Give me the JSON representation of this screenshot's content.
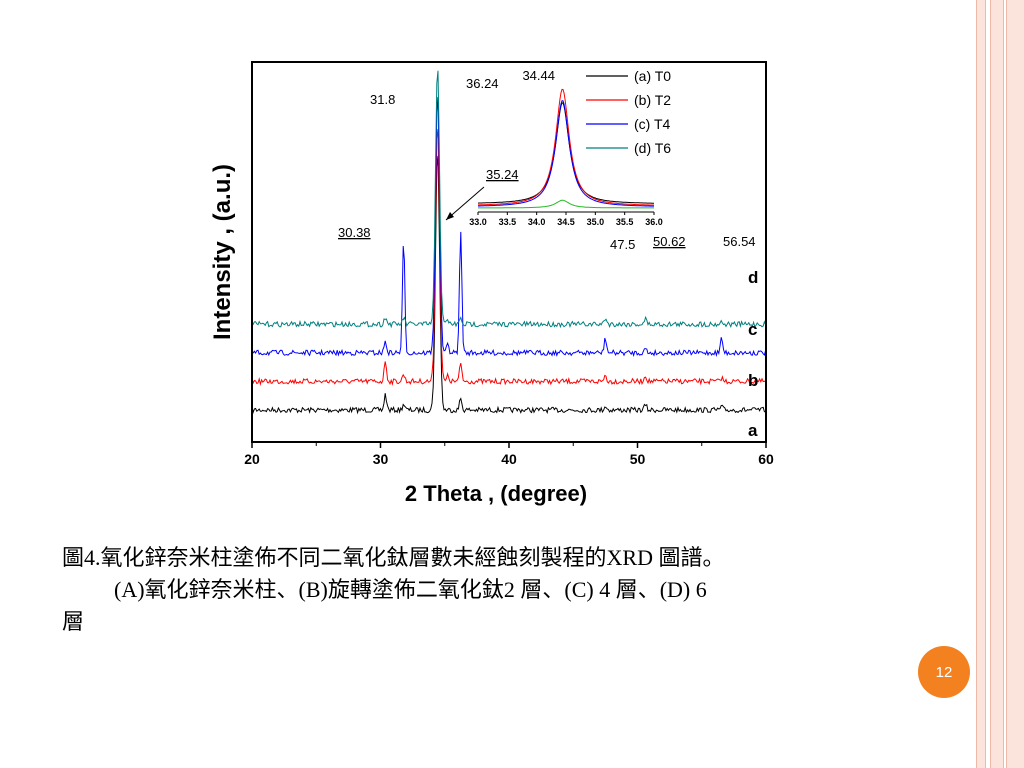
{
  "chart_data": {
    "type": "line",
    "xlabel": "2 Theta , (degree)",
    "ylabel": "Intensity , (a.u.)",
    "xlim": [
      20,
      60
    ],
    "xticks": [
      "20",
      "30",
      "40",
      "50",
      "60"
    ],
    "series": [
      {
        "name": "(a) T0",
        "label": "a",
        "color": "#000000",
        "baseline": 0.0,
        "scale": 1.0,
        "peaks": [
          [
            30.38,
            0.3
          ],
          [
            31.8,
            0.12
          ],
          [
            34.44,
            5.0
          ],
          [
            36.24,
            0.22
          ],
          [
            47.5,
            0.08
          ],
          [
            50.62,
            0.1
          ],
          [
            56.54,
            0.06
          ]
        ]
      },
      {
        "name": "(b) T2",
        "label": "b",
        "color": "#ff0000",
        "baseline": 0.55,
        "scale": 1.0,
        "peaks": [
          [
            30.38,
            0.4
          ],
          [
            31.8,
            0.14
          ],
          [
            34.44,
            5.0
          ],
          [
            35.24,
            0.1
          ],
          [
            36.24,
            0.34
          ],
          [
            47.5,
            0.12
          ],
          [
            50.62,
            0.12
          ],
          [
            56.54,
            0.07
          ]
        ]
      },
      {
        "name": "(c) T4",
        "label": "c",
        "color": "#0000ff",
        "baseline": 1.1,
        "scale": 1.0,
        "peaks": [
          [
            30.38,
            0.22
          ],
          [
            31.8,
            2.15
          ],
          [
            34.44,
            5.0
          ],
          [
            35.24,
            0.16
          ],
          [
            36.24,
            2.35
          ],
          [
            47.5,
            0.28
          ],
          [
            50.62,
            0.08
          ],
          [
            56.54,
            0.28
          ]
        ]
      },
      {
        "name": "(d) T6",
        "label": "d",
        "color": "#008080",
        "baseline": 1.65,
        "scale": 1.0,
        "peaks": [
          [
            30.38,
            0.14
          ],
          [
            31.8,
            0.12
          ],
          [
            34.44,
            5.0
          ],
          [
            35.24,
            0.08
          ],
          [
            36.24,
            0.1
          ],
          [
            47.5,
            0.12
          ],
          [
            50.62,
            0.1
          ],
          [
            56.54,
            0.05
          ]
        ]
      }
    ],
    "annotations": [
      "31.8",
      "36.24",
      "35.24",
      "30.38",
      "47.5",
      "50.62",
      "56.54"
    ],
    "legend_position": "top-right",
    "inset": {
      "peak_label": "34.44",
      "xlim": [
        33.0,
        36.0
      ],
      "xticks": [
        "33.0",
        "33.5",
        "34.0",
        "34.5",
        "35.0",
        "35.5",
        "36.0"
      ],
      "peak_center": 34.44,
      "heights": {
        "(a) T0": 0.78,
        "(b) T2": 0.9,
        "(c) T4": 0.82,
        "(d) T6": 0.06
      }
    }
  },
  "caption": {
    "line1": "圖4.氧化鋅奈米柱塗佈不同二氧化鈦層數未經蝕刻製程的XRD 圖譜。",
    "line2": "(A)氧化鋅奈米柱、(B)旋轉塗佈二氧化鈦2 層、(C) 4 層、(D) 6",
    "line3": "層"
  },
  "page_number": "12",
  "colors": {
    "accent": "#f3811f",
    "rail": "#fbe4db"
  }
}
